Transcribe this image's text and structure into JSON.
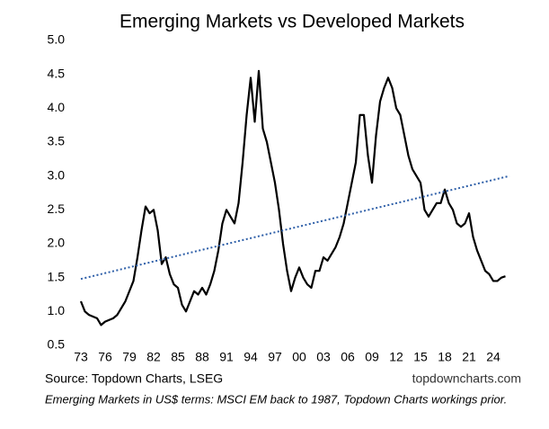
{
  "chart_data": {
    "type": "line",
    "title": "Emerging Markets vs Developed Markets",
    "source": "Source: Topdown Charts, LSEG",
    "watermark": "topdowncharts.com",
    "note": "Emerging Markets in US$ terms: MSCI EM back to 1987, Topdown Charts workings prior.",
    "xlim": [
      1972,
      2026.5
    ],
    "ylim": [
      0.5,
      5
    ],
    "xticks": [
      {
        "value": 1973,
        "label": "73"
      },
      {
        "value": 1976,
        "label": "76"
      },
      {
        "value": 1979,
        "label": "79"
      },
      {
        "value": 1982,
        "label": "82"
      },
      {
        "value": 1985,
        "label": "85"
      },
      {
        "value": 1988,
        "label": "88"
      },
      {
        "value": 1991,
        "label": "91"
      },
      {
        "value": 1994,
        "label": "94"
      },
      {
        "value": 1997,
        "label": "97"
      },
      {
        "value": 2000,
        "label": "00"
      },
      {
        "value": 2003,
        "label": "03"
      },
      {
        "value": 2006,
        "label": "06"
      },
      {
        "value": 2009,
        "label": "09"
      },
      {
        "value": 2012,
        "label": "12"
      },
      {
        "value": 2015,
        "label": "15"
      },
      {
        "value": 2018,
        "label": "18"
      },
      {
        "value": 2021,
        "label": "21"
      },
      {
        "value": 2024,
        "label": "24"
      }
    ],
    "yticks": [
      {
        "value": 0.5,
        "label": "0.5"
      },
      {
        "value": 1,
        "label": "1.0"
      },
      {
        "value": 1.5,
        "label": "1.5"
      },
      {
        "value": 2,
        "label": "2.0"
      },
      {
        "value": 2.5,
        "label": "2.5"
      },
      {
        "value": 3,
        "label": "3.0"
      },
      {
        "value": 3.5,
        "label": "3.5"
      },
      {
        "value": 4,
        "label": "4.0"
      },
      {
        "value": 4.5,
        "label": "4.5"
      },
      {
        "value": 5,
        "label": "5.0"
      }
    ],
    "grid": false,
    "series": [
      {
        "color": "#000000",
        "x": [
          1973,
          1973.5,
          1974,
          1975,
          1975.5,
          1976,
          1977,
          1977.5,
          1978,
          1978.5,
          1979,
          1979.5,
          1980,
          1980.5,
          1981,
          1981.5,
          1982,
          1982.5,
          1983,
          1983.5,
          1984,
          1984.5,
          1985,
          1985.5,
          1986,
          1986.5,
          1987,
          1987.5,
          1988,
          1988.5,
          1989,
          1989.5,
          1990,
          1990.5,
          1991,
          1991.5,
          1992,
          1992.5,
          1993,
          1993.5,
          1994,
          1994.5,
          1995,
          1995.5,
          1996,
          1996.5,
          1997,
          1997.5,
          1998,
          1998.5,
          1999,
          1999.5,
          2000,
          2000.5,
          2001,
          2001.5,
          2002,
          2002.5,
          2003,
          2003.5,
          2004,
          2004.5,
          2005,
          2005.5,
          2006,
          2006.5,
          2007,
          2007.5,
          2008,
          2008.5,
          2009,
          2009.5,
          2010,
          2010.5,
          2011,
          2011.5,
          2012,
          2012.5,
          2013,
          2013.5,
          2014,
          2014.5,
          2015,
          2015.5,
          2016,
          2016.5,
          2017,
          2017.5,
          2018,
          2018.5,
          2019,
          2019.5,
          2020,
          2020.5,
          2021,
          2021.5,
          2022,
          2022.5,
          2023,
          2023.5,
          2024,
          2024.5,
          2025,
          2025.5
        ],
        "values": [
          1.15,
          1.0,
          0.95,
          0.9,
          0.8,
          0.85,
          0.9,
          0.95,
          1.05,
          1.15,
          1.3,
          1.45,
          1.8,
          2.2,
          2.55,
          2.45,
          2.5,
          2.2,
          1.7,
          1.8,
          1.55,
          1.4,
          1.35,
          1.1,
          1.0,
          1.15,
          1.3,
          1.25,
          1.35,
          1.25,
          1.4,
          1.6,
          1.9,
          2.3,
          2.5,
          2.4,
          2.3,
          2.6,
          3.2,
          3.9,
          4.45,
          3.8,
          4.55,
          3.7,
          3.5,
          3.2,
          2.9,
          2.5,
          2.0,
          1.6,
          1.3,
          1.5,
          1.65,
          1.5,
          1.4,
          1.35,
          1.6,
          1.6,
          1.8,
          1.75,
          1.85,
          1.95,
          2.1,
          2.3,
          2.6,
          2.9,
          3.2,
          3.9,
          3.9,
          3.3,
          2.9,
          3.6,
          4.1,
          4.3,
          4.45,
          4.3,
          4.0,
          3.9,
          3.6,
          3.3,
          3.1,
          3.0,
          2.9,
          2.5,
          2.4,
          2.5,
          2.6,
          2.6,
          2.8,
          2.6,
          2.5,
          2.3,
          2.25,
          2.3,
          2.45,
          2.1,
          1.9,
          1.75,
          1.6,
          1.55,
          1.45,
          1.45,
          1.5,
          1.52
        ]
      },
      {
        "color": "#2e5fa8",
        "dash": true,
        "x": [
          1973,
          2026
        ],
        "values": [
          1.48,
          3.0
        ]
      }
    ]
  }
}
